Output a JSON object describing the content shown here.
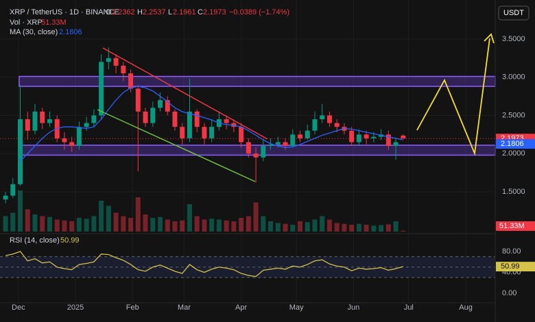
{
  "chart_data": {
    "type": "candlestick",
    "title": "XRP / TetherUS · 1D · BINANCE",
    "ohlc_labels": [
      "O",
      "H",
      "L",
      "C"
    ],
    "change": "−0.0389 (−1.74%)",
    "volume_title": "Vol · XRP",
    "last_volume_label": "51.33M",
    "ma_title": "MA (30, close)",
    "rsi_title": "RSI (14, close)",
    "currency": "USDT",
    "up_color": "#089981",
    "down_color": "#f23645",
    "ma_color": "#2962ff",
    "rsi_color": "#d4c24a",
    "x": [
      -7,
      -3,
      1,
      5,
      9,
      13,
      17,
      21,
      25,
      29,
      33,
      37,
      41,
      45,
      49,
      53,
      57,
      61,
      65,
      69,
      73,
      77,
      81,
      85,
      89,
      93,
      97,
      101,
      105,
      109,
      113,
      117,
      121,
      125,
      129,
      133,
      137,
      141,
      145,
      149,
      153,
      157,
      161,
      165,
      169,
      173,
      177,
      181,
      185,
      189,
      193,
      197,
      201,
      205,
      209
    ],
    "open": [
      1.4,
      1.45,
      1.6,
      2.45,
      2.3,
      2.55,
      2.4,
      2.45,
      2.2,
      2.15,
      2.1,
      2.35,
      2.4,
      2.5,
      3.2,
      3.25,
      3.15,
      3.05,
      2.85,
      2.55,
      2.4,
      2.6,
      2.7,
      2.55,
      2.35,
      2.2,
      2.55,
      2.35,
      2.2,
      2.35,
      2.45,
      2.4,
      2.35,
      2.15,
      2.0,
      1.95,
      2.1,
      2.12,
      2.15,
      2.1,
      2.25,
      2.2,
      2.3,
      2.45,
      2.5,
      2.4,
      2.35,
      2.3,
      2.15,
      2.25,
      2.2,
      2.22,
      2.25,
      2.1,
      2.2362
    ],
    "high": [
      1.5,
      1.68,
      2.9,
      2.55,
      2.65,
      2.6,
      2.55,
      2.5,
      2.28,
      2.22,
      2.42,
      2.48,
      2.58,
      3.3,
      3.39,
      3.3,
      3.2,
      3.1,
      2.9,
      2.6,
      2.68,
      2.8,
      2.75,
      2.58,
      2.4,
      2.98,
      2.58,
      2.4,
      2.45,
      2.55,
      2.5,
      2.45,
      2.4,
      2.2,
      2.08,
      2.18,
      2.2,
      2.22,
      2.2,
      2.32,
      2.3,
      2.38,
      2.55,
      2.65,
      2.55,
      2.45,
      2.4,
      2.35,
      2.32,
      2.3,
      2.28,
      2.32,
      2.3,
      2.2,
      2.2537
    ],
    "low": [
      1.35,
      1.42,
      1.58,
      2.18,
      2.25,
      2.32,
      2.35,
      2.15,
      2.05,
      2.02,
      2.05,
      2.3,
      2.35,
      2.45,
      3.1,
      3.05,
      2.95,
      2.8,
      1.77,
      2.35,
      2.35,
      2.55,
      2.5,
      2.3,
      2.12,
      2.15,
      2.28,
      2.12,
      2.15,
      2.3,
      2.32,
      2.28,
      2.08,
      1.95,
      1.62,
      1.9,
      2.05,
      2.08,
      2.05,
      2.08,
      2.15,
      2.18,
      2.25,
      2.4,
      2.35,
      2.28,
      2.25,
      2.1,
      2.1,
      2.12,
      2.15,
      2.18,
      2.05,
      1.92,
      2.1961
    ],
    "close": [
      1.45,
      1.6,
      2.45,
      2.3,
      2.55,
      2.4,
      2.45,
      2.2,
      2.15,
      2.1,
      2.35,
      2.4,
      2.5,
      3.2,
      3.25,
      3.15,
      3.05,
      2.85,
      2.55,
      2.4,
      2.6,
      2.7,
      2.55,
      2.35,
      2.2,
      2.55,
      2.35,
      2.2,
      2.35,
      2.45,
      2.4,
      2.35,
      2.15,
      2.0,
      1.95,
      2.1,
      2.12,
      2.15,
      2.1,
      2.25,
      2.2,
      2.3,
      2.45,
      2.5,
      2.4,
      2.35,
      2.3,
      2.15,
      2.25,
      2.2,
      2.22,
      2.25,
      2.1,
      2.15,
      2.1973
    ],
    "volume": [
      900,
      1100,
      2400,
      1300,
      1000,
      900,
      850,
      700,
      650,
      600,
      800,
      750,
      900,
      1800,
      1500,
      1100,
      900,
      800,
      2000,
      1000,
      800,
      850,
      700,
      600,
      650,
      1600,
      900,
      700,
      750,
      700,
      650,
      600,
      800,
      900,
      1700,
      900,
      600,
      500,
      450,
      400,
      600,
      550,
      700,
      900,
      700,
      500,
      450,
      400,
      450,
      400,
      350,
      380,
      420,
      600,
      51.33
    ],
    "ma": [
      null,
      null,
      1.9,
      2.0,
      2.1,
      2.2,
      2.28,
      2.33,
      2.35,
      2.35,
      2.34,
      2.33,
      2.35,
      2.45,
      2.58,
      2.7,
      2.8,
      2.86,
      2.88,
      2.86,
      2.82,
      2.75,
      2.68,
      2.6,
      2.55,
      2.52,
      2.5,
      2.47,
      2.44,
      2.4,
      2.38,
      2.37,
      2.35,
      2.3,
      2.24,
      2.18,
      2.13,
      2.1,
      2.08,
      2.09,
      2.12,
      2.16,
      2.2,
      2.24,
      2.27,
      2.3,
      2.33,
      2.32,
      2.3,
      2.28,
      2.26,
      2.24,
      2.22,
      2.2,
      2.1806
    ],
    "rsi": [
      72,
      75,
      80,
      62,
      66,
      58,
      60,
      50,
      47,
      45,
      55,
      57,
      60,
      75,
      74,
      68,
      63,
      55,
      45,
      42,
      50,
      54,
      48,
      42,
      38,
      55,
      45,
      40,
      46,
      50,
      48,
      45,
      38,
      34,
      32,
      44,
      46,
      48,
      46,
      52,
      50,
      55,
      62,
      64,
      56,
      52,
      50,
      43,
      48,
      46,
      47,
      49,
      44,
      47,
      50.99
    ],
    "xlim": [
      -10,
      259
    ],
    "xticks": [
      {
        "value": 0,
        "label": "Dec"
      },
      {
        "value": 31,
        "label": "2025"
      },
      {
        "value": 62,
        "label": "Feb"
      },
      {
        "value": 90,
        "label": "Mar"
      },
      {
        "value": 121,
        "label": "Apr"
      },
      {
        "value": 151,
        "label": "May"
      },
      {
        "value": 182,
        "label": "Jun"
      },
      {
        "value": 212,
        "label": "Jul"
      },
      {
        "value": 243,
        "label": "Aug"
      }
    ],
    "ylim": [
      0.98,
      4.01
    ],
    "yticks": [
      {
        "value": 1.5,
        "label": "1.5000"
      },
      {
        "value": 2.0,
        "label": "2.0000"
      },
      {
        "value": 2.5,
        "label": "2.5000"
      },
      {
        "value": 3.0,
        "label": "3.0000"
      },
      {
        "value": 3.5,
        "label": "3.5000"
      }
    ],
    "rsi_lim": [
      -18.4,
      110.2
    ],
    "rsi_ticks": [
      {
        "value": 0,
        "label": "0.00"
      },
      {
        "value": 40,
        "label": "40.00"
      },
      {
        "value": 80,
        "label": "80.00"
      }
    ],
    "rsi_bands": [
      30,
      50,
      70
    ],
    "zones": [
      {
        "low": 2.88,
        "high": 3.01
      },
      {
        "low": 1.98,
        "high": 2.11
      }
    ],
    "grid": true
  }
}
